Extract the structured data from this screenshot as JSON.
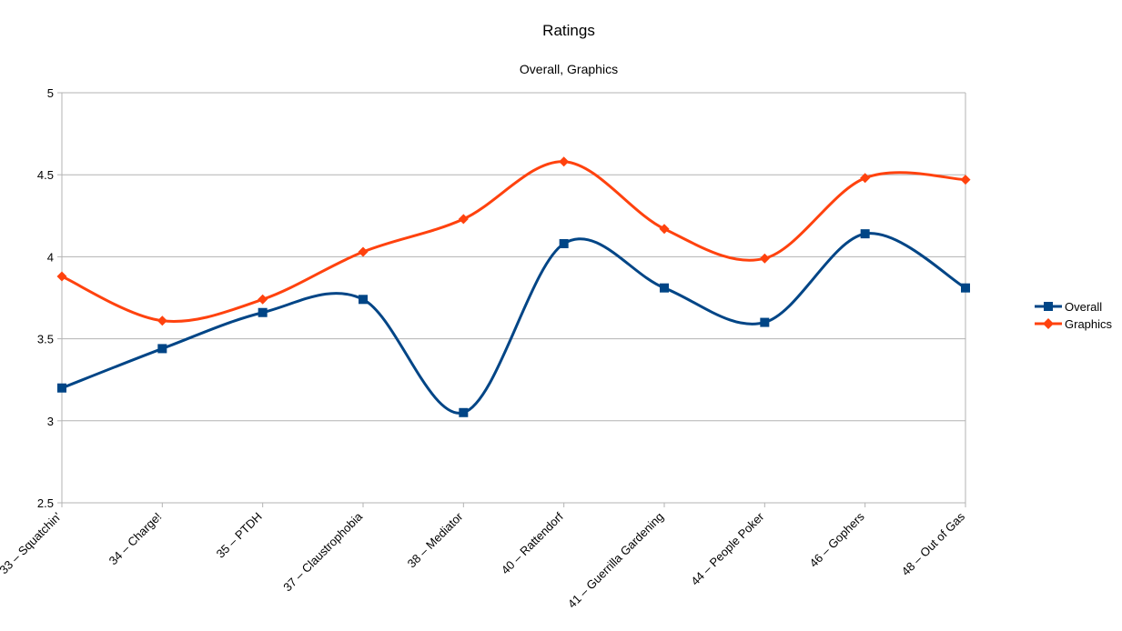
{
  "chart_data": {
    "type": "line",
    "title": "Ratings",
    "subtitle": "Overall, Graphics",
    "xlabel": "",
    "ylabel": "",
    "ylim": [
      2.5,
      5
    ],
    "yticks": [
      "2.5",
      "3",
      "3.5",
      "4",
      "4.5",
      "5"
    ],
    "grid": "horizontal",
    "smooth": true,
    "legend_position": "right",
    "categories": [
      "33 – Squatchin'",
      "34 – Charge!",
      "35 – PTDH",
      "37 – Claustrophobia",
      "38 – Mediator",
      "40 – Rattendorf",
      "41 – Guerrilla Gardening",
      "44 – People Poker",
      "46 – Gophers",
      "48 – Out of Gas"
    ],
    "series": [
      {
        "name": "Overall",
        "color": "#004586",
        "marker": "square",
        "values": [
          3.2,
          3.44,
          3.66,
          3.74,
          3.05,
          4.08,
          3.81,
          3.6,
          4.14,
          3.81
        ]
      },
      {
        "name": "Graphics",
        "color": "#ff420e",
        "marker": "diamond",
        "values": [
          3.88,
          3.61,
          3.74,
          4.03,
          4.23,
          4.58,
          4.17,
          3.99,
          4.48,
          4.47
        ]
      }
    ]
  }
}
